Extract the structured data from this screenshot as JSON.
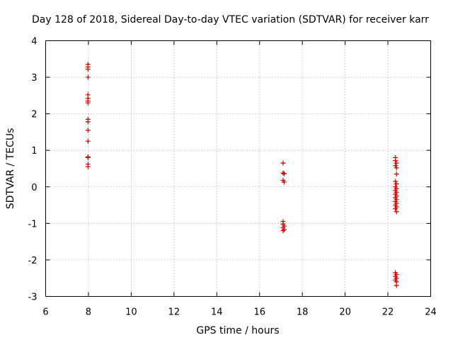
{
  "chart_data": {
    "type": "scatter",
    "title": "Day 128 of 2018, Sidereal Day-to-day VTEC variation (SDTVAR) for receiver karr",
    "xlabel": "GPS time / hours",
    "ylabel": "SDTVAR / TECUs",
    "xlim": [
      6,
      24
    ],
    "ylim": [
      -3,
      4
    ],
    "xticks": [
      "6",
      "8",
      "10",
      "12",
      "14",
      "16",
      "18",
      "20",
      "22",
      "24"
    ],
    "yticks": [
      "-3",
      "-2",
      "-1",
      "0",
      "1",
      "2",
      "3",
      "4"
    ],
    "grid": true,
    "marker": "+",
    "color": "#cc0000",
    "series": [
      {
        "name": "SDTVAR",
        "points": [
          [
            7.98,
            3.35
          ],
          [
            7.98,
            3.28
          ],
          [
            7.98,
            3.22
          ],
          [
            7.98,
            3.0
          ],
          [
            7.98,
            2.52
          ],
          [
            7.98,
            2.42
          ],
          [
            7.98,
            2.35
          ],
          [
            7.98,
            2.3
          ],
          [
            7.98,
            1.85
          ],
          [
            7.98,
            1.78
          ],
          [
            7.98,
            1.55
          ],
          [
            7.98,
            1.25
          ],
          [
            7.98,
            0.82
          ],
          [
            7.98,
            0.8
          ],
          [
            7.98,
            0.62
          ],
          [
            7.98,
            0.55
          ],
          [
            17.1,
            0.65
          ],
          [
            17.1,
            0.38
          ],
          [
            17.15,
            0.36
          ],
          [
            17.1,
            0.18
          ],
          [
            17.15,
            0.13
          ],
          [
            17.1,
            -0.95
          ],
          [
            17.1,
            -1.02
          ],
          [
            17.15,
            -1.07
          ],
          [
            17.1,
            -1.12
          ],
          [
            17.15,
            -1.17
          ],
          [
            17.1,
            -1.2
          ],
          [
            22.35,
            0.8
          ],
          [
            22.35,
            0.72
          ],
          [
            22.4,
            0.65
          ],
          [
            22.35,
            0.58
          ],
          [
            22.4,
            0.52
          ],
          [
            22.4,
            0.35
          ],
          [
            22.35,
            0.15
          ],
          [
            22.4,
            0.08
          ],
          [
            22.35,
            0.0
          ],
          [
            22.4,
            -0.05
          ],
          [
            22.35,
            -0.1
          ],
          [
            22.4,
            -0.15
          ],
          [
            22.35,
            -0.2
          ],
          [
            22.4,
            -0.25
          ],
          [
            22.35,
            -0.3
          ],
          [
            22.4,
            -0.35
          ],
          [
            22.35,
            -0.4
          ],
          [
            22.4,
            -0.45
          ],
          [
            22.35,
            -0.5
          ],
          [
            22.4,
            -0.55
          ],
          [
            22.35,
            -0.6
          ],
          [
            22.4,
            -0.68
          ],
          [
            22.35,
            -2.35
          ],
          [
            22.4,
            -2.4
          ],
          [
            22.35,
            -2.45
          ],
          [
            22.4,
            -2.5
          ],
          [
            22.35,
            -2.55
          ],
          [
            22.4,
            -2.6
          ],
          [
            22.4,
            -2.7
          ]
        ]
      }
    ]
  }
}
